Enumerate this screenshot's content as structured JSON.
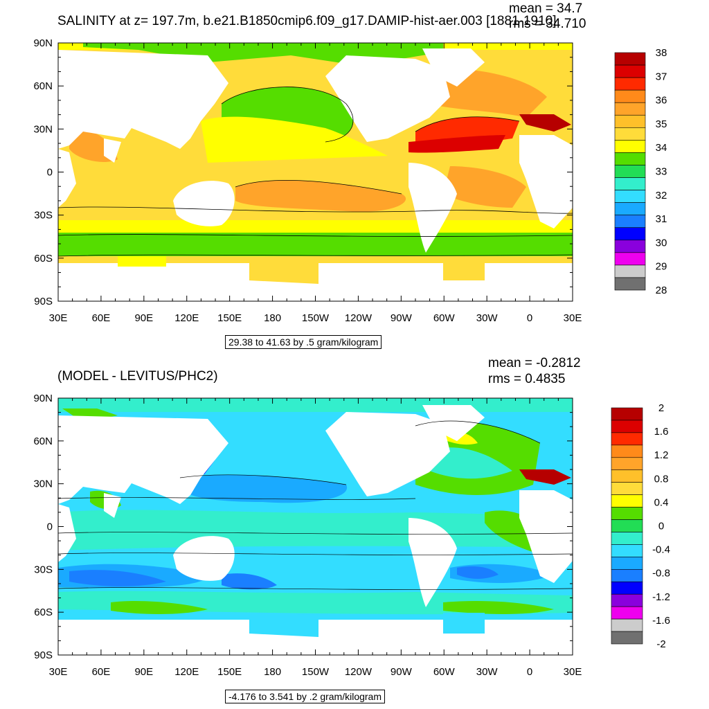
{
  "top": {
    "title": "SALINITY at z= 197.7m, b.e21.B1850cmip6.f09_g17.DAMIP-hist-aer.003 [1881-1910]",
    "mean_text": "mean = 34.7",
    "rms_text": "rms = 34.710",
    "contour_info": "29.38 to 41.63 by .5 gram/kilogram",
    "colorbar_labels": [
      "38",
      "37",
      "36",
      "35",
      "34",
      "33",
      "32",
      "31",
      "30",
      "29",
      "28"
    ],
    "colorbar_colors": [
      "#b60000",
      "#dc0000",
      "#ff2a00",
      "#ff8a1a",
      "#ffa42a",
      "#ffc02a",
      "#ffdc3a",
      "#ffff00",
      "#55dd00",
      "#22dd55",
      "#33eecc",
      "#33ddff",
      "#1aaaff",
      "#1a7fff",
      "#0000ff",
      "#8a00dd",
      "#ee00ee",
      "#cccccc",
      "#707070"
    ]
  },
  "bottom": {
    "title": "(MODEL - LEVITUS/PHC2)",
    "mean_text": "mean = -0.2812",
    "rms_text": "rms = 0.4835",
    "contour_info": "-4.176 to 3.541 by .2 gram/kilogram",
    "colorbar_labels": [
      "2",
      "1.6",
      "1.2",
      "0.8",
      "0.4",
      "0",
      "-0.4",
      "-0.8",
      "-1.2",
      "-1.6",
      "-2"
    ],
    "colorbar_colors": [
      "#b60000",
      "#dc0000",
      "#ff2a00",
      "#ff8a1a",
      "#ffa42a",
      "#ffc02a",
      "#ffdc3a",
      "#ffff00",
      "#55dd00",
      "#22dd55",
      "#33eecc",
      "#33ddff",
      "#1aaaff",
      "#1a7fff",
      "#0000ff",
      "#8a00dd",
      "#ee00ee",
      "#cccccc",
      "#707070"
    ]
  },
  "axes": {
    "lat_labels": [
      "90N",
      "60N",
      "30N",
      "0",
      "30S",
      "60S",
      "90S"
    ],
    "lon_labels": [
      "30E",
      "60E",
      "90E",
      "120E",
      "150E",
      "180",
      "150W",
      "120W",
      "90W",
      "60W",
      "30W",
      "0",
      "30E"
    ]
  }
}
